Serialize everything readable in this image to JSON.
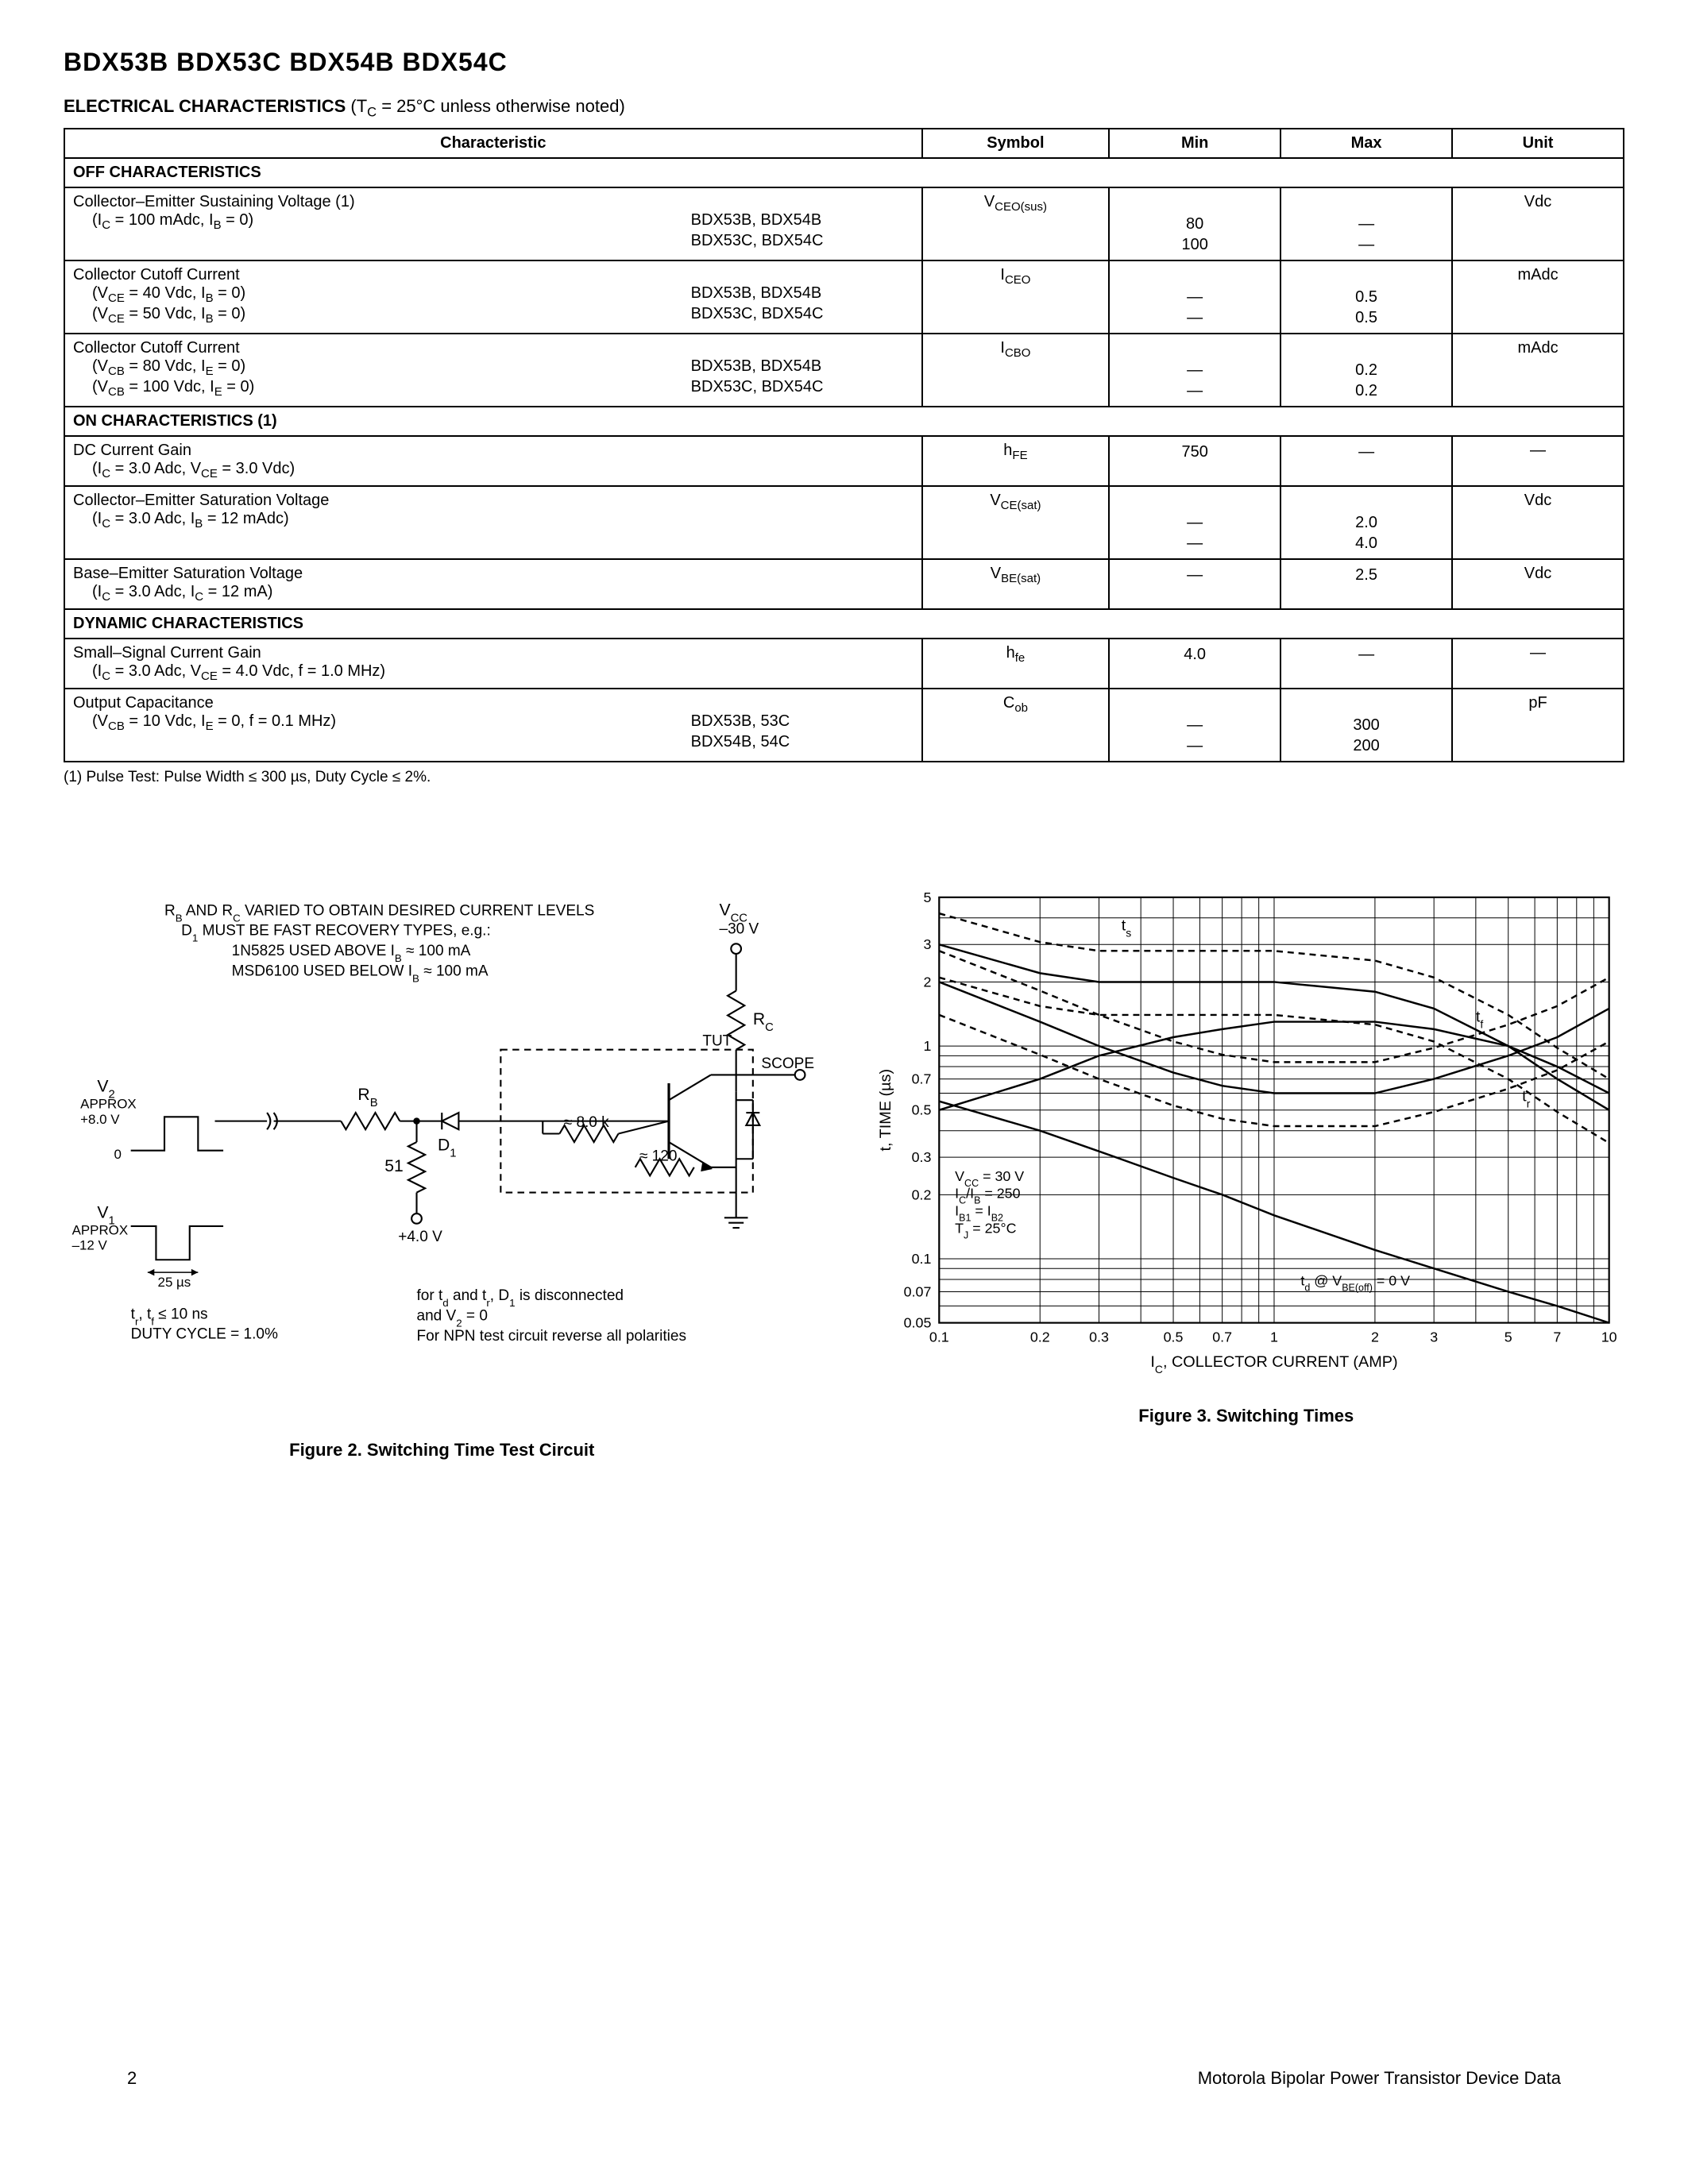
{
  "header": {
    "parts": "BDX53B BDX53C BDX54B BDX54C"
  },
  "section_title": {
    "bold": "ELECTRICAL CHARACTERISTICS",
    "cond": " (T",
    "cond_sub": "C",
    "cond2": " = 25°C unless otherwise noted)"
  },
  "table": {
    "headers": [
      "Characteristic",
      "Symbol",
      "Min",
      "Max",
      "Unit"
    ],
    "col_widths": [
      "55%",
      "12%",
      "11%",
      "11%",
      "11%"
    ],
    "sections": [
      {
        "title": "OFF CHARACTERISTICS",
        "rows": [
          {
            "name": "Collector–Emitter Sustaining Voltage (1)",
            "conds": [
              "(I_C = 100 mAdc, I_B = 0)"
            ],
            "parts": [
              "BDX53B, BDX54B",
              "BDX53C, BDX54C"
            ],
            "symbol": "V_CEO(sus)",
            "min": [
              "",
              "80",
              "100"
            ],
            "max": [
              "",
              "—",
              "—"
            ],
            "unit": "Vdc"
          },
          {
            "name": "Collector Cutoff Current",
            "conds": [
              "(V_CE = 40 Vdc, I_B = 0)",
              "(V_CE = 50 Vdc, I_B = 0)"
            ],
            "parts": [
              "BDX53B, BDX54B",
              "BDX53C, BDX54C"
            ],
            "symbol": "I_CEO",
            "min": [
              "",
              "—",
              "—"
            ],
            "max": [
              "",
              "0.5",
              "0.5"
            ],
            "unit": "mAdc"
          },
          {
            "name": "Collector Cutoff Current",
            "conds": [
              "(V_CB = 80 Vdc, I_E = 0)",
              "(V_CB = 100 Vdc, I_E = 0)"
            ],
            "parts": [
              "BDX53B, BDX54B",
              "BDX53C, BDX54C"
            ],
            "symbol": "I_CBO",
            "min": [
              "",
              "—",
              "—"
            ],
            "max": [
              "",
              "0.2",
              "0.2"
            ],
            "unit": "mAdc"
          }
        ]
      },
      {
        "title": "ON CHARACTERISTICS (1)",
        "rows": [
          {
            "name": "DC Current Gain",
            "conds": [
              "(I_C = 3.0 Adc, V_CE = 3.0 Vdc)"
            ],
            "parts": [],
            "symbol": "h_FE",
            "min": [
              "750"
            ],
            "max": [
              "—"
            ],
            "unit": "—"
          },
          {
            "name": "Collector–Emitter Saturation Voltage",
            "conds": [
              "(I_C = 3.0 Adc, I_B = 12 mAdc)"
            ],
            "parts": [],
            "symbol": "V_CE(sat)",
            "min": [
              "",
              "—",
              "—"
            ],
            "max": [
              "",
              "2.0",
              "4.0"
            ],
            "unit": "Vdc"
          },
          {
            "name": "Base–Emitter Saturation Voltage",
            "conds": [
              "(I_C = 3.0 Adc, I_C = 12 mA)"
            ],
            "parts": [],
            "symbol": "V_BE(sat)",
            "min": [
              "—"
            ],
            "max": [
              "2.5"
            ],
            "unit": "Vdc"
          }
        ]
      },
      {
        "title": "DYNAMIC CHARACTERISTICS",
        "rows": [
          {
            "name": "Small–Signal Current Gain",
            "conds": [
              "(I_C = 3.0 Adc, V_CE = 4.0 Vdc, f = 1.0 MHz)"
            ],
            "parts": [],
            "symbol": "h_fe",
            "min": [
              "4.0"
            ],
            "max": [
              "—"
            ],
            "unit": "—"
          },
          {
            "name": "Output Capacitance",
            "conds": [
              "(V_CB = 10 Vdc, I_E = 0, f = 0.1 MHz)"
            ],
            "parts": [
              "BDX53B, 53C",
              "BDX54B, 54C"
            ],
            "symbol": "C_ob",
            "min": [
              "",
              "—",
              "—"
            ],
            "max": [
              "",
              "300",
              "200"
            ],
            "unit": "pF"
          }
        ]
      }
    ]
  },
  "footnote": "(1)  Pulse Test: Pulse Width  ≤  300 µs, Duty Cycle  ≤  2%.",
  "fig2": {
    "caption": "Figure 2. Switching Time Test Circuit",
    "notes_top": [
      "R_B AND R_C VARIED TO OBTAIN DESIRED CURRENT LEVELS",
      "D_1 MUST BE FAST RECOVERY TYPES, e.g.:",
      "1N5825 USED ABOVE I_B  ≈  100 mA",
      "MSD6100 USED BELOW I_B  ≈  100 mA"
    ],
    "labels": {
      "vcc": "V_CC",
      "vcc_val": "–30 V",
      "rc": "R_C",
      "scope": "SCOPE",
      "tut": "TUT",
      "rb": "R_B",
      "d1": "D_1",
      "r51": "51",
      "r8k": "≈ 8.0 k",
      "r120": "≈ 120",
      "v4": "+4.0 V",
      "v2": "V_2",
      "v2a": "APPROX",
      "v2b": "+8.0 V",
      "zero": "0",
      "v1": "V_1",
      "v1a": "APPROX",
      "v1b": "–12 V",
      "t25": "25 µs",
      "trtf": "t_r, t_f  ≤  10 ns",
      "duty": "DUTY CYCLE = 1.0%",
      "note1": "for t_d and t_r, D_1 is disconnected",
      "note2": "and V_2 = 0",
      "note3": "For NPN test circuit reverse all polarities"
    }
  },
  "fig3": {
    "caption": "Figure 3. Switching Times",
    "type": "line-loglog",
    "xlabel": "I_C, COLLECTOR CURRENT (AMP)",
    "ylabel": "t, TIME (µs)",
    "xlim": [
      0.1,
      10
    ],
    "ylim": [
      0.05,
      5.0
    ],
    "xticks": [
      0.1,
      0.2,
      0.3,
      0.5,
      0.7,
      1.0,
      2.0,
      3.0,
      5.0,
      7.0,
      10
    ],
    "yticks": [
      0.05,
      0.07,
      0.1,
      0.2,
      0.3,
      0.5,
      0.7,
      1.0,
      2.0,
      3.0,
      5.0
    ],
    "annot": [
      "V_CC = 30 V",
      "I_C/I_B = 250",
      "I_B1 = I_B2",
      "T_J = 25°C"
    ],
    "td_label": "t_d @ V_BE(off) = 0 V",
    "curve_labels": {
      "ts": "t_s",
      "tf": "t_f",
      "tr": "t_r"
    },
    "colors": {
      "axis": "#000000",
      "grid": "#000000",
      "bg": "#ffffff",
      "line": "#000000"
    },
    "line_width": 2.5,
    "series": {
      "ts": [
        [
          0.1,
          3.0
        ],
        [
          0.2,
          2.2
        ],
        [
          0.3,
          2.0
        ],
        [
          0.5,
          2.0
        ],
        [
          0.7,
          2.0
        ],
        [
          1.0,
          2.0
        ],
        [
          2.0,
          1.8
        ],
        [
          3.0,
          1.5
        ],
        [
          5.0,
          1.0
        ],
        [
          7.0,
          0.7
        ],
        [
          10,
          0.5
        ]
      ],
      "tf": [
        [
          0.1,
          0.5
        ],
        [
          0.2,
          0.7
        ],
        [
          0.3,
          0.9
        ],
        [
          0.5,
          1.1
        ],
        [
          0.7,
          1.2
        ],
        [
          1.0,
          1.3
        ],
        [
          2.0,
          1.3
        ],
        [
          3.0,
          1.2
        ],
        [
          5.0,
          1.0
        ],
        [
          7.0,
          0.8
        ],
        [
          10,
          0.6
        ]
      ],
      "tr": [
        [
          0.1,
          2.0
        ],
        [
          0.2,
          1.3
        ],
        [
          0.3,
          1.0
        ],
        [
          0.5,
          0.75
        ],
        [
          0.7,
          0.65
        ],
        [
          1.0,
          0.6
        ],
        [
          2.0,
          0.6
        ],
        [
          3.0,
          0.7
        ],
        [
          5.0,
          0.9
        ],
        [
          7.0,
          1.1
        ],
        [
          10,
          1.5
        ]
      ],
      "td": [
        [
          0.1,
          0.55
        ],
        [
          0.2,
          0.4
        ],
        [
          0.3,
          0.32
        ],
        [
          0.5,
          0.24
        ],
        [
          0.7,
          0.2
        ],
        [
          1.0,
          0.16
        ],
        [
          2.0,
          0.11
        ],
        [
          3.0,
          0.09
        ],
        [
          5.0,
          0.07
        ],
        [
          7.0,
          0.06
        ],
        [
          10,
          0.05
        ]
      ]
    }
  },
  "footer": {
    "page": "2",
    "src": "Motorola Bipolar Power Transistor Device Data"
  }
}
